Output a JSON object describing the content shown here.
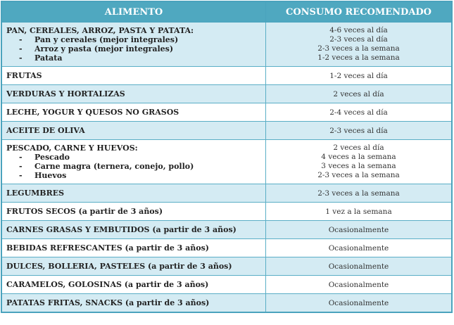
{
  "header": {
    "col1": "ALIMENTO",
    "col2": "CONSUMO RECOMENDADO"
  },
  "colors": {
    "header_bg": "#4fa8c0",
    "row_alt": "#d4ebf3",
    "border": "#4aa3bd"
  },
  "rows": [
    {
      "food": "PAN, CEREALES, ARROZ, PASTA Y PATATA:",
      "subitems": [
        "Pan y cereales (mejor integrales)",
        "Arroz y pasta (mejor integrales)",
        "Patata"
      ],
      "consumption": [
        "4-6 veces al día",
        "2-3 veces al día",
        "2-3 veces a la semana",
        "1-2 veces a la semana"
      ]
    },
    {
      "food": "FRUTAS",
      "consumption": [
        "1-2 veces al día"
      ]
    },
    {
      "food": "VERDURAS Y HORTALIZAS",
      "consumption": [
        "2 veces al día"
      ]
    },
    {
      "food": "LECHE, YOGUR Y QUESOS NO GRASOS",
      "consumption": [
        "2-4 veces al día"
      ]
    },
    {
      "food": "ACEITE DE OLIVA",
      "consumption": [
        "2-3 veces al día"
      ]
    },
    {
      "food": "PESCADO, CARNE Y HUEVOS:",
      "subitems": [
        "Pescado",
        "Carne magra (ternera, conejo, pollo)",
        "Huevos"
      ],
      "consumption": [
        "2 veces al día",
        "4 veces a la semana",
        "3 veces a la semana",
        "2-3 veces a la semana"
      ]
    },
    {
      "food": "LEGUMBRES",
      "consumption": [
        "2-3 veces a la semana"
      ]
    },
    {
      "food": "FRUTOS SECOS (a partir de 3 años)",
      "consumption": [
        "1 vez a la semana"
      ]
    },
    {
      "food": "CARNES GRASAS Y EMBUTIDOS (a partir de 3 años)",
      "consumption": [
        "Ocasionalmente"
      ]
    },
    {
      "food": "BEBIDAS REFRESCANTES (a partir de 3 años)",
      "consumption": [
        "Ocasionalmente"
      ]
    },
    {
      "food": "DULCES, BOLLERIA, PASTELES (a partir de 3 años)",
      "consumption": [
        "Ocasionalmente"
      ]
    },
    {
      "food": "CARAMELOS, GOLOSINAS (a partir de 3 años)",
      "consumption": [
        "Ocasionalmente"
      ]
    },
    {
      "food": "PATATAS FRITAS, SNACKS (a partir de 3 años)",
      "consumption": [
        "Ocasionalmente"
      ]
    }
  ]
}
